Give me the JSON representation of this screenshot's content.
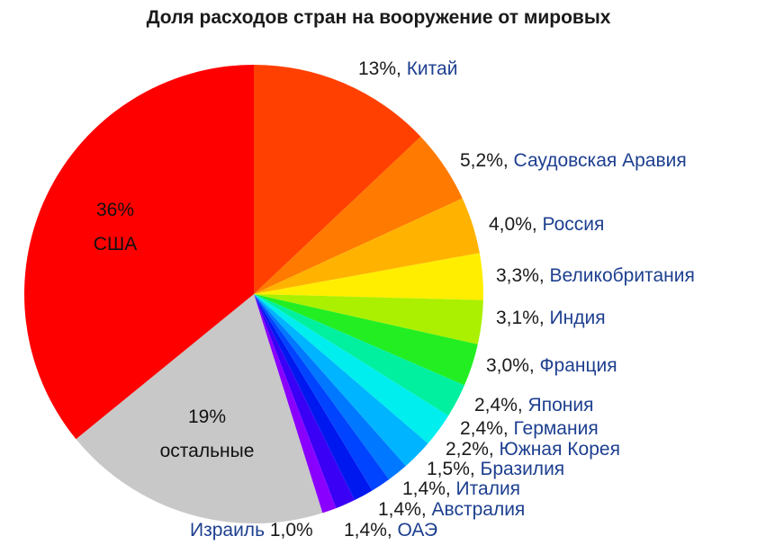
{
  "chart_data": {
    "type": "pie",
    "title": "Доля расходов стран на вооружение от мировых",
    "slices": [
      {
        "label": "Китай",
        "value_text": "13%",
        "value": 13,
        "color": "#ff4000"
      },
      {
        "label": "Саудовская Аравия",
        "value_text": "5,2%",
        "value": 5.2,
        "color": "#ff7a00"
      },
      {
        "label": "Россия",
        "value_text": "4,0%",
        "value": 4.0,
        "color": "#ffb300"
      },
      {
        "label": "Великобритания",
        "value_text": "3,3%",
        "value": 3.3,
        "color": "#ffee00"
      },
      {
        "label": "Индия",
        "value_text": "3,1%",
        "value": 3.1,
        "color": "#aaf000"
      },
      {
        "label": "Франция",
        "value_text": "3,0%",
        "value": 3.0,
        "color": "#22ee22"
      },
      {
        "label": "Япония",
        "value_text": "2,4%",
        "value": 2.4,
        "color": "#00f0a0"
      },
      {
        "label": "Германия",
        "value_text": "2,4%",
        "value": 2.4,
        "color": "#00eeee"
      },
      {
        "label": "Южная Корея",
        "value_text": "2,2%",
        "value": 2.2,
        "color": "#00b4ff"
      },
      {
        "label": "Бразилия",
        "value_text": "1,5%",
        "value": 1.5,
        "color": "#0078ff"
      },
      {
        "label": "Италия",
        "value_text": "1,4%",
        "value": 1.4,
        "color": "#0044ff"
      },
      {
        "label": "Австралия",
        "value_text": "1,4%",
        "value": 1.4,
        "color": "#0018f0"
      },
      {
        "label": "ОАЭ",
        "value_text": "1,4%",
        "value": 1.4,
        "color": "#3a00f5"
      },
      {
        "label": "Израиль",
        "value_text": "1,0%",
        "value": 1.0,
        "color": "#8a00ff"
      },
      {
        "label": "остальные",
        "value_text": "19%",
        "value": 19,
        "color": "#c8c8c8"
      },
      {
        "label": "США",
        "value_text": "36%",
        "value": 36,
        "color": "#ff0000"
      }
    ],
    "colors": {
      "label_text": "#1d3f8f",
      "value_text": "#1a1a1a"
    }
  }
}
